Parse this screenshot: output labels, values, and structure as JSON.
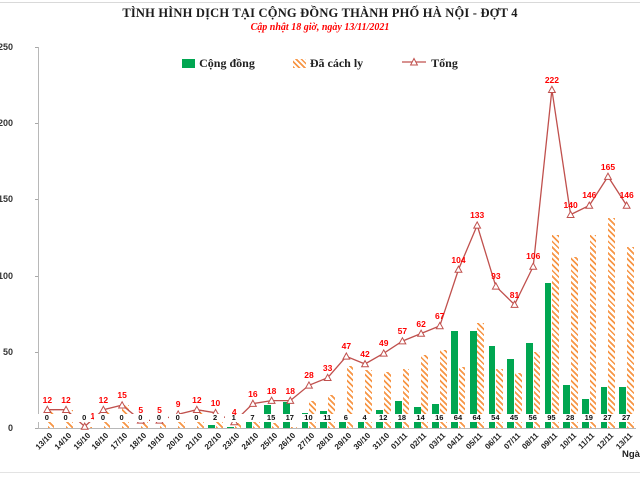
{
  "title": "TÌNH HÌNH DỊCH TẠI CỘNG ĐỒNG THÀNH PHỐ HÀ NỘI - ĐỢT 4",
  "subtitle": "Cập nhật 18 giờ, ngày 13/11/2021",
  "legend": [
    {
      "label": "Cộng đồng",
      "swatch": "solid-green"
    },
    {
      "label": "Đã cách ly",
      "swatch": "hatched-orange"
    },
    {
      "label": "Tổng",
      "swatch": "red-line-marker"
    }
  ],
  "colors": {
    "community": "#00A651",
    "quarantined": "#F79646",
    "total_line": "#C0504D",
    "total_label": "#FF0000"
  },
  "x_axis_label": "Ngày",
  "y_ticks": [
    0,
    50,
    100,
    150,
    200,
    250
  ],
  "chart_data": {
    "type": "bar",
    "subtype": "grouped bars with line overlay",
    "title": "TÌNH HÌNH DỊCH TẠI CỘNG ĐỒNG THÀNH PHỐ HÀ NỘI - ĐỢT 4",
    "subtitle": "Cập nhật 18 giờ, ngày 13/11/2021",
    "xlabel": "Ngày",
    "ylabel": "",
    "ylim": [
      0,
      250
    ],
    "grid": false,
    "legend_position": "top",
    "categories": [
      "13/10",
      "14/10",
      "15/10",
      "16/10",
      "17/10",
      "18/10",
      "19/10",
      "20/10",
      "21/10",
      "22/10",
      "23/10",
      "24/10",
      "25/10",
      "26/10",
      "27/10",
      "28/10",
      "29/10",
      "30/10",
      "31/10",
      "01/11",
      "02/11",
      "03/11",
      "04/11",
      "05/11",
      "06/11",
      "07/11",
      "08/11",
      "09/11",
      "10/11",
      "11/11",
      "12/11",
      "13/11"
    ],
    "series": [
      {
        "name": "Cộng đồng",
        "type": "bar",
        "color": "#00A651",
        "values": [
          0,
          0,
          0,
          0,
          0,
          0,
          0,
          0,
          0,
          2,
          1,
          7,
          15,
          17,
          10,
          11,
          6,
          4,
          12,
          18,
          14,
          16,
          64,
          64,
          54,
          45,
          56,
          95,
          28,
          19,
          27,
          27
        ]
      },
      {
        "name": "Đã cách ly",
        "type": "bar",
        "color": "#F79646",
        "hatched": true,
        "values": [
          12,
          12,
          1,
          12,
          15,
          5,
          5,
          9,
          12,
          8,
          3,
          9,
          3,
          1,
          18,
          22,
          41,
          38,
          37,
          39,
          48,
          51,
          40,
          69,
          39,
          36,
          50,
          127,
          112,
          127,
          138,
          119
        ]
      },
      {
        "name": "Tổng",
        "type": "line",
        "color": "#C0504D",
        "marker": "open-triangle",
        "values": [
          12,
          12,
          1,
          12,
          15,
          5,
          5,
          9,
          12,
          10,
          4,
          16,
          18,
          18,
          28,
          33,
          47,
          42,
          49,
          57,
          62,
          67,
          104,
          133,
          93,
          81,
          106,
          222,
          140,
          146,
          165,
          146
        ]
      }
    ]
  }
}
